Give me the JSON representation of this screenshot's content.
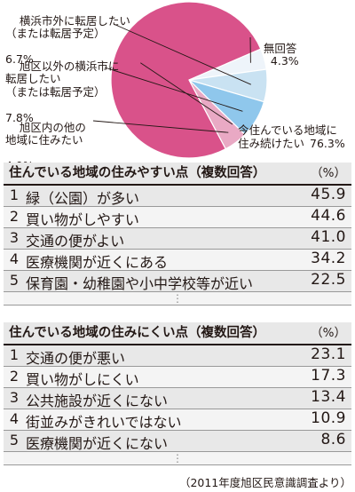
{
  "chart_data": [
    {
      "type": "pie",
      "slices": [
        {
          "label": "今住んでいる地域に\n住み続けたい",
          "value": 76.3,
          "value_text": "76.3%",
          "color": "#d9528a"
        },
        {
          "label": "無回答",
          "value": 4.3,
          "value_text": "4.3%",
          "color": "#eef4fa"
        },
        {
          "label": "横浜市外に転居したい\n（または転居予定）",
          "value": 6.7,
          "value_text": "6.7%",
          "color": "#c9e2f2"
        },
        {
          "label": "旭区以外の横浜市に\n転居したい\n（または転居予定）",
          "value": 7.8,
          "value_text": "7.8%",
          "color": "#8fc7ec"
        },
        {
          "label": "旭区内の他の\n地域に住みたい",
          "value": 4.9,
          "value_text": "4.9%",
          "color": "#e9a9c4"
        }
      ]
    },
    {
      "type": "table",
      "title": "住んでいる地域の住みやすい点（複数回答）",
      "unit": "（%）",
      "rows": [
        {
          "rank": "1",
          "label": "緑（公園）が多い",
          "value": "45.9"
        },
        {
          "rank": "2",
          "label": "買い物がしやすい",
          "value": "44.6"
        },
        {
          "rank": "3",
          "label": "交通の便がよい",
          "value": "41.0"
        },
        {
          "rank": "4",
          "label": "医療機関が近くにある",
          "value": "34.2"
        },
        {
          "rank": "5",
          "label": "保育園・幼稚園や小中学校等が近い",
          "value": "22.5"
        }
      ]
    },
    {
      "type": "table",
      "title": "住んでいる地域の住みにくい点（複数回答）",
      "unit": "（%）",
      "rows": [
        {
          "rank": "1",
          "label": "交通の便が悪い",
          "value": "23.1"
        },
        {
          "rank": "2",
          "label": "買い物がしにくい",
          "value": "17.3"
        },
        {
          "rank": "3",
          "label": "公共施設が近くにない",
          "value": "13.4"
        },
        {
          "rank": "4",
          "label": "街並みがきれいではない",
          "value": "10.9"
        },
        {
          "rank": "5",
          "label": "医療機関が近くにない",
          "value": "8.6"
        }
      ]
    }
  ],
  "ellipsis": "⋮",
  "source": "（2011年度旭区民意識調査より）"
}
